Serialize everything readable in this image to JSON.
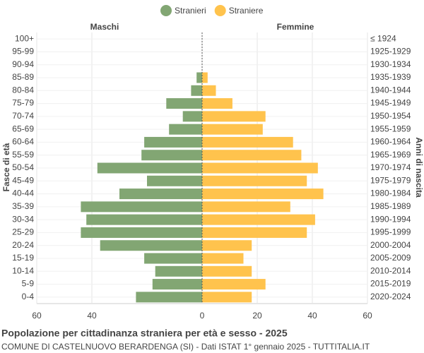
{
  "chart_data": {
    "type": "pyramid",
    "title": "Popolazione per cittadinanza straniera per età e sesso - 2025",
    "subtitle": "COMUNE DI CASTELNUOVO BERARDENGA (SI) - Dati ISTAT 1° gennaio 2025 - TUTTITALIA.IT",
    "left_header": "Maschi",
    "right_header": "Femmine",
    "y_label": "Fasce di età",
    "y2_label": "Anni di nascita",
    "categories": [
      "100+",
      "95-99",
      "90-94",
      "85-89",
      "80-84",
      "75-79",
      "70-74",
      "65-69",
      "60-64",
      "55-59",
      "50-54",
      "45-49",
      "40-44",
      "35-39",
      "30-34",
      "25-29",
      "20-24",
      "15-19",
      "10-14",
      "5-9",
      "0-4"
    ],
    "birth_years": [
      "≤ 1924",
      "1925-1929",
      "1930-1934",
      "1935-1939",
      "1940-1944",
      "1945-1949",
      "1950-1954",
      "1955-1959",
      "1960-1964",
      "1965-1969",
      "1970-1974",
      "1975-1979",
      "1980-1984",
      "1985-1989",
      "1990-1994",
      "1995-1999",
      "2000-2004",
      "2005-2009",
      "2010-2014",
      "2015-2019",
      "2020-2024"
    ],
    "series": [
      {
        "name": "Stranieri",
        "color": "#82a673",
        "side": "left",
        "values": [
          0,
          0,
          0,
          2,
          4,
          13,
          7,
          12,
          21,
          22,
          38,
          20,
          30,
          44,
          42,
          44,
          37,
          21,
          17,
          18,
          24
        ]
      },
      {
        "name": "Straniere",
        "color": "#ffc34d",
        "side": "right",
        "values": [
          0,
          0,
          0,
          2,
          5,
          11,
          23,
          22,
          33,
          36,
          42,
          38,
          44,
          32,
          41,
          38,
          18,
          15,
          18,
          23,
          18
        ]
      }
    ],
    "xlim": [
      -60,
      60
    ],
    "xticks": [
      {
        "value": -60,
        "label": "60"
      },
      {
        "value": -40,
        "label": "40"
      },
      0,
      20,
      40,
      60
    ],
    "grid": true
  }
}
